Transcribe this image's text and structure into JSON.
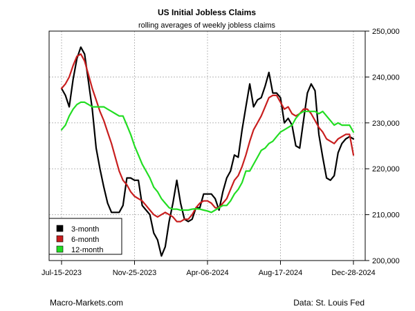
{
  "chart_data": {
    "type": "line",
    "title": "US Initial Jobless Claims",
    "subtitle": "rolling averages of weekly jobless claims",
    "xlabel": "",
    "ylabel": "",
    "x_ticks": [
      "Jul-15-2023",
      "Nov-25-2023",
      "Apr-06-2024",
      "Aug-17-2024",
      "Dec-28-2024"
    ],
    "x_tick_dates": [
      "2023-07-15",
      "2023-11-25",
      "2024-04-06",
      "2024-08-17",
      "2024-12-28"
    ],
    "xlim": [
      "2023-07-15",
      "2024-12-28"
    ],
    "y_ticks": [
      200000,
      210000,
      220000,
      230000,
      240000,
      250000
    ],
    "y_tick_labels": [
      "200,000",
      "210,000",
      "220,000",
      "230,000",
      "240,000",
      "250,000"
    ],
    "ylim": [
      200000,
      250000
    ],
    "y_axis_side": "right",
    "grid": true,
    "legend_position": "bottom-left",
    "series": [
      {
        "name": "3-month",
        "color": "#000000",
        "points": [
          [
            "2023-07-15",
            237500
          ],
          [
            "2023-07-22",
            236000
          ],
          [
            "2023-07-29",
            233500
          ],
          [
            "2023-08-05",
            239500
          ],
          [
            "2023-08-12",
            244000
          ],
          [
            "2023-08-19",
            246500
          ],
          [
            "2023-08-26",
            245000
          ],
          [
            "2023-09-02",
            239000
          ],
          [
            "2023-09-09",
            233000
          ],
          [
            "2023-09-16",
            224500
          ],
          [
            "2023-09-23",
            220000
          ],
          [
            "2023-09-30",
            216000
          ],
          [
            "2023-10-07",
            212500
          ],
          [
            "2023-10-14",
            210500
          ],
          [
            "2023-10-21",
            210500
          ],
          [
            "2023-10-28",
            210500
          ],
          [
            "2023-11-04",
            212000
          ],
          [
            "2023-11-11",
            218000
          ],
          [
            "2023-11-18",
            218000
          ],
          [
            "2023-11-25",
            217500
          ],
          [
            "2023-12-02",
            217500
          ],
          [
            "2023-12-09",
            212000
          ],
          [
            "2023-12-16",
            211000
          ],
          [
            "2023-12-23",
            210000
          ],
          [
            "2023-12-30",
            206000
          ],
          [
            "2024-01-06",
            204500
          ],
          [
            "2024-01-13",
            201000
          ],
          [
            "2024-01-20",
            203000
          ],
          [
            "2024-01-27",
            208500
          ],
          [
            "2024-02-03",
            212500
          ],
          [
            "2024-02-10",
            217500
          ],
          [
            "2024-02-17",
            212500
          ],
          [
            "2024-02-24",
            209000
          ],
          [
            "2024-03-02",
            208500
          ],
          [
            "2024-03-09",
            209000
          ],
          [
            "2024-03-16",
            211500
          ],
          [
            "2024-03-23",
            211500
          ],
          [
            "2024-03-30",
            214500
          ],
          [
            "2024-04-06",
            214500
          ],
          [
            "2024-04-13",
            214500
          ],
          [
            "2024-04-20",
            213500
          ],
          [
            "2024-04-27",
            211000
          ],
          [
            "2024-05-04",
            215000
          ],
          [
            "2024-05-11",
            218000
          ],
          [
            "2024-05-18",
            219500
          ],
          [
            "2024-05-25",
            223000
          ],
          [
            "2024-06-01",
            222500
          ],
          [
            "2024-06-08",
            228500
          ],
          [
            "2024-06-15",
            233500
          ],
          [
            "2024-06-22",
            238500
          ],
          [
            "2024-06-29",
            233500
          ],
          [
            "2024-07-06",
            235000
          ],
          [
            "2024-07-13",
            235500
          ],
          [
            "2024-07-20",
            238000
          ],
          [
            "2024-07-27",
            241000
          ],
          [
            "2024-08-03",
            236500
          ],
          [
            "2024-08-10",
            236500
          ],
          [
            "2024-08-17",
            235500
          ],
          [
            "2024-08-24",
            230000
          ],
          [
            "2024-08-31",
            231000
          ],
          [
            "2024-09-07",
            229500
          ],
          [
            "2024-09-14",
            225000
          ],
          [
            "2024-09-21",
            224500
          ],
          [
            "2024-09-28",
            230500
          ],
          [
            "2024-10-05",
            236500
          ],
          [
            "2024-10-12",
            238500
          ],
          [
            "2024-10-19",
            237000
          ],
          [
            "2024-10-26",
            227500
          ],
          [
            "2024-11-02",
            222500
          ],
          [
            "2024-11-09",
            218000
          ],
          [
            "2024-11-16",
            217500
          ],
          [
            "2024-11-23",
            218500
          ],
          [
            "2024-11-30",
            223500
          ],
          [
            "2024-12-07",
            225500
          ],
          [
            "2024-12-14",
            226500
          ],
          [
            "2024-12-21",
            227000
          ],
          [
            "2024-12-28",
            226500
          ]
        ]
      },
      {
        "name": "6-month",
        "color": "#c81e1e",
        "points": [
          [
            "2023-07-15",
            237500
          ],
          [
            "2023-07-22",
            238500
          ],
          [
            "2023-07-29",
            240000
          ],
          [
            "2023-08-05",
            242500
          ],
          [
            "2023-08-12",
            244500
          ],
          [
            "2023-08-19",
            245000
          ],
          [
            "2023-08-26",
            243500
          ],
          [
            "2023-09-02",
            240500
          ],
          [
            "2023-09-09",
            237500
          ],
          [
            "2023-09-16",
            235000
          ],
          [
            "2023-09-23",
            232500
          ],
          [
            "2023-09-30",
            230500
          ],
          [
            "2023-10-07",
            228000
          ],
          [
            "2023-10-14",
            225500
          ],
          [
            "2023-10-21",
            222500
          ],
          [
            "2023-10-28",
            219500
          ],
          [
            "2023-11-04",
            217500
          ],
          [
            "2023-11-11",
            216500
          ],
          [
            "2023-11-18",
            215000
          ],
          [
            "2023-11-25",
            214000
          ],
          [
            "2023-12-02",
            213500
          ],
          [
            "2023-12-09",
            213000
          ],
          [
            "2023-12-16",
            212000
          ],
          [
            "2023-12-23",
            211000
          ],
          [
            "2023-12-30",
            210000
          ],
          [
            "2024-01-06",
            209500
          ],
          [
            "2024-01-13",
            210000
          ],
          [
            "2024-01-20",
            210500
          ],
          [
            "2024-01-27",
            210000
          ],
          [
            "2024-02-03",
            209500
          ],
          [
            "2024-02-10",
            208500
          ],
          [
            "2024-02-17",
            208500
          ],
          [
            "2024-02-24",
            209000
          ],
          [
            "2024-03-02",
            209000
          ],
          [
            "2024-03-09",
            210000
          ],
          [
            "2024-03-16",
            211500
          ],
          [
            "2024-03-23",
            212500
          ],
          [
            "2024-03-30",
            213000
          ],
          [
            "2024-04-06",
            213000
          ],
          [
            "2024-04-13",
            212500
          ],
          [
            "2024-04-20",
            211500
          ],
          [
            "2024-04-27",
            211500
          ],
          [
            "2024-05-04",
            212500
          ],
          [
            "2024-05-11",
            213500
          ],
          [
            "2024-05-18",
            215500
          ],
          [
            "2024-05-25",
            217500
          ],
          [
            "2024-06-01",
            218500
          ],
          [
            "2024-06-08",
            220500
          ],
          [
            "2024-06-15",
            223000
          ],
          [
            "2024-06-22",
            226000
          ],
          [
            "2024-06-29",
            228500
          ],
          [
            "2024-07-06",
            230000
          ],
          [
            "2024-07-13",
            231500
          ],
          [
            "2024-07-20",
            233500
          ],
          [
            "2024-07-27",
            235500
          ],
          [
            "2024-08-03",
            236000
          ],
          [
            "2024-08-10",
            236000
          ],
          [
            "2024-08-17",
            234500
          ],
          [
            "2024-08-24",
            233000
          ],
          [
            "2024-08-31",
            233500
          ],
          [
            "2024-09-07",
            232000
          ],
          [
            "2024-09-14",
            231500
          ],
          [
            "2024-09-21",
            232000
          ],
          [
            "2024-09-28",
            233000
          ],
          [
            "2024-10-05",
            233000
          ],
          [
            "2024-10-12",
            232000
          ],
          [
            "2024-10-19",
            230500
          ],
          [
            "2024-10-26",
            229000
          ],
          [
            "2024-11-02",
            228000
          ],
          [
            "2024-11-09",
            226500
          ],
          [
            "2024-11-16",
            226000
          ],
          [
            "2024-11-23",
            225500
          ],
          [
            "2024-11-30",
            226500
          ],
          [
            "2024-12-07",
            227000
          ],
          [
            "2024-12-14",
            227500
          ],
          [
            "2024-12-21",
            227500
          ],
          [
            "2024-12-28",
            223000
          ]
        ]
      },
      {
        "name": "12-month",
        "color": "#22dd22",
        "points": [
          [
            "2023-07-15",
            228500
          ],
          [
            "2023-07-22",
            229500
          ],
          [
            "2023-07-29",
            231500
          ],
          [
            "2023-08-05",
            233000
          ],
          [
            "2023-08-12",
            234000
          ],
          [
            "2023-08-19",
            234500
          ],
          [
            "2023-08-26",
            234500
          ],
          [
            "2023-09-02",
            234000
          ],
          [
            "2023-09-09",
            233500
          ],
          [
            "2023-09-16",
            233500
          ],
          [
            "2023-09-23",
            233500
          ],
          [
            "2023-09-30",
            233500
          ],
          [
            "2023-10-07",
            233000
          ],
          [
            "2023-10-14",
            232500
          ],
          [
            "2023-10-21",
            232000
          ],
          [
            "2023-10-28",
            231500
          ],
          [
            "2023-11-04",
            231500
          ],
          [
            "2023-11-11",
            229500
          ],
          [
            "2023-11-18",
            227500
          ],
          [
            "2023-11-25",
            225000
          ],
          [
            "2023-12-02",
            223000
          ],
          [
            "2023-12-09",
            221000
          ],
          [
            "2023-12-16",
            219500
          ],
          [
            "2023-12-23",
            218000
          ],
          [
            "2023-12-30",
            216000
          ],
          [
            "2024-01-06",
            215000
          ],
          [
            "2024-01-13",
            213500
          ],
          [
            "2024-01-20",
            212500
          ],
          [
            "2024-01-27",
            211500
          ],
          [
            "2024-02-03",
            211200
          ],
          [
            "2024-02-10",
            211200
          ],
          [
            "2024-02-17",
            211000
          ],
          [
            "2024-02-24",
            211000
          ],
          [
            "2024-03-02",
            211000
          ],
          [
            "2024-03-09",
            211200
          ],
          [
            "2024-03-16",
            211300
          ],
          [
            "2024-03-23",
            211200
          ],
          [
            "2024-03-30",
            211000
          ],
          [
            "2024-04-06",
            210800
          ],
          [
            "2024-04-13",
            210500
          ],
          [
            "2024-04-20",
            211000
          ],
          [
            "2024-04-27",
            211500
          ],
          [
            "2024-05-04",
            212000
          ],
          [
            "2024-05-11",
            212000
          ],
          [
            "2024-05-18",
            213000
          ],
          [
            "2024-05-25",
            214500
          ],
          [
            "2024-06-01",
            215500
          ],
          [
            "2024-06-08",
            217000
          ],
          [
            "2024-06-15",
            219500
          ],
          [
            "2024-06-22",
            219500
          ],
          [
            "2024-06-29",
            221000
          ],
          [
            "2024-07-06",
            222500
          ],
          [
            "2024-07-13",
            224000
          ],
          [
            "2024-07-20",
            224500
          ],
          [
            "2024-07-27",
            225500
          ],
          [
            "2024-08-03",
            226000
          ],
          [
            "2024-08-10",
            227000
          ],
          [
            "2024-08-17",
            228000
          ],
          [
            "2024-08-24",
            228500
          ],
          [
            "2024-08-31",
            229000
          ],
          [
            "2024-09-07",
            229500
          ],
          [
            "2024-09-14",
            231000
          ],
          [
            "2024-09-21",
            232000
          ],
          [
            "2024-09-28",
            232500
          ],
          [
            "2024-10-05",
            232500
          ],
          [
            "2024-10-12",
            232500
          ],
          [
            "2024-10-19",
            232500
          ],
          [
            "2024-10-26",
            232000
          ],
          [
            "2024-11-02",
            232500
          ],
          [
            "2024-11-09",
            231500
          ],
          [
            "2024-11-16",
            230500
          ],
          [
            "2024-11-23",
            229500
          ],
          [
            "2024-11-30",
            230000
          ],
          [
            "2024-12-07",
            229500
          ],
          [
            "2024-12-14",
            229500
          ],
          [
            "2024-12-21",
            229500
          ],
          [
            "2024-12-28",
            228000
          ]
        ]
      }
    ]
  },
  "footer": {
    "left": "Macro-Markets.com",
    "right": "Data: St. Louis Fed"
  }
}
